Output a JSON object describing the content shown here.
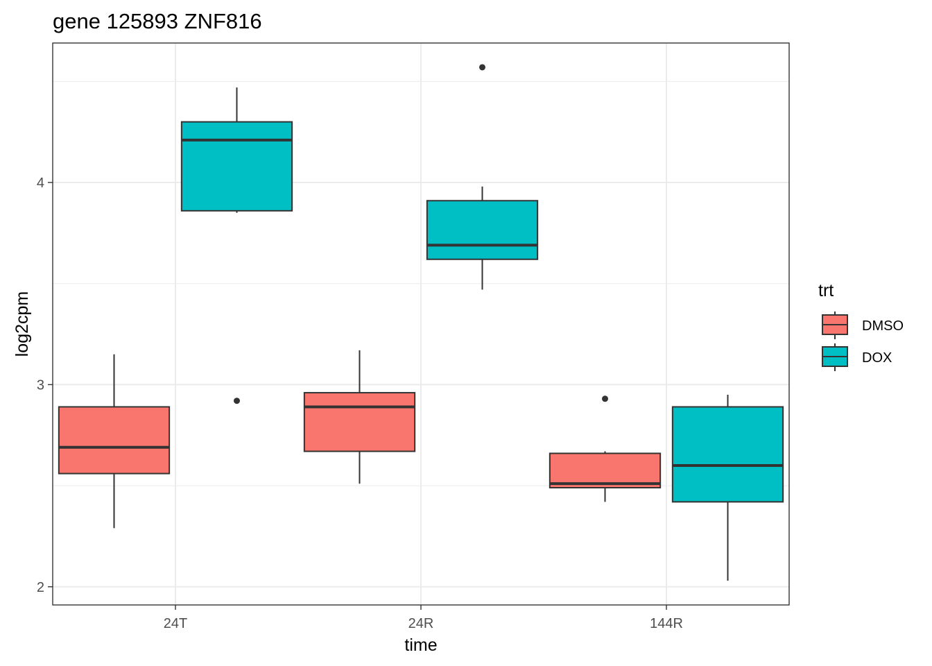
{
  "chart_data": {
    "type": "boxplot",
    "title": "gene 125893 ZNF816",
    "xlabel": "time",
    "ylabel": "log2cpm",
    "categories": [
      "24T",
      "24R",
      "144R"
    ],
    "yticks": [
      2,
      3,
      4
    ],
    "ylim": [
      1.91,
      4.69
    ],
    "grid": true,
    "legend": {
      "title": "trt",
      "position": "right",
      "entries": [
        "DMSO",
        "DOX"
      ]
    },
    "series": [
      {
        "name": "DMSO",
        "color": "#F8766D",
        "boxes": [
          {
            "category": "24T",
            "min": 2.29,
            "q1": 2.56,
            "median": 2.69,
            "q3": 2.89,
            "max": 3.15,
            "outliers": []
          },
          {
            "category": "24R",
            "min": 2.51,
            "q1": 2.67,
            "median": 2.89,
            "q3": 2.96,
            "max": 3.17,
            "outliers": []
          },
          {
            "category": "144R",
            "min": 2.42,
            "q1": 2.49,
            "median": 2.51,
            "q3": 2.66,
            "max": 2.67,
            "outliers": [
              2.93
            ]
          }
        ]
      },
      {
        "name": "DOX",
        "color": "#00BFC4",
        "boxes": [
          {
            "category": "24T",
            "min": 3.85,
            "q1": 3.86,
            "median": 4.21,
            "q3": 4.3,
            "max": 4.47,
            "outliers": [
              2.92
            ]
          },
          {
            "category": "24R",
            "min": 3.47,
            "q1": 3.62,
            "median": 3.69,
            "q3": 3.91,
            "max": 3.98,
            "outliers": [
              4.57
            ]
          },
          {
            "category": "144R",
            "min": 2.03,
            "q1": 2.42,
            "median": 2.6,
            "q3": 2.89,
            "max": 2.95,
            "outliers": []
          }
        ]
      }
    ]
  }
}
